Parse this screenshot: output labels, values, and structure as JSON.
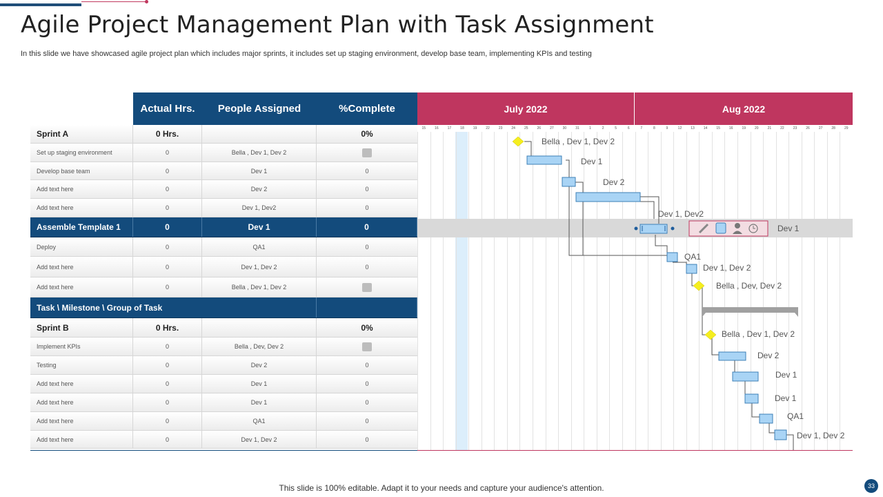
{
  "title": "Agile Project Management Plan with Task Assignment",
  "subtitle": "In this slide we have showcased agile project plan which includes major sprints, it includes set up staging environment, develop base team, implementing KPIs and testing",
  "table": {
    "headers": {
      "actual": "Actual Hrs.",
      "people": "People Assigned",
      "complete": "%Complete"
    },
    "rows": [
      {
        "name": "Sprint A",
        "hrs": "0 Hrs.",
        "people": "",
        "pct": "0%",
        "kind": "bold"
      },
      {
        "name": "Set up staging environment",
        "hrs": "0",
        "people": "Bella , Dev 1, Dev 2",
        "pct": "",
        "check": true
      },
      {
        "name": "Develop base team",
        "hrs": "0",
        "people": "Dev 1",
        "pct": "0"
      },
      {
        "name": "Add text here",
        "hrs": "0",
        "people": "Dev 2",
        "pct": "0"
      },
      {
        "name": "Add text here",
        "hrs": "0",
        "people": "Dev 1, Dev2",
        "pct": "0"
      },
      {
        "name": "Assemble Template 1",
        "hrs": "0",
        "people": "Dev 1",
        "pct": "0",
        "kind": "group"
      },
      {
        "name": "Deploy",
        "hrs": "0",
        "people": "QA1",
        "pct": "0"
      },
      {
        "name": "Add text here",
        "hrs": "0",
        "people": "Dev 1, Dev 2",
        "pct": "0"
      },
      {
        "name": "Add text here",
        "hrs": "0",
        "people": "Bella , Dev 1, Dev 2",
        "pct": "",
        "check": true
      },
      {
        "name": "Task \\ Milestone \\ Group of Task",
        "hrs": "",
        "people": "",
        "pct": "",
        "kind": "group-wide"
      },
      {
        "name": "Sprint B",
        "hrs": "0 Hrs.",
        "people": "",
        "pct": "0%",
        "kind": "bold"
      },
      {
        "name": "Implement KPIs",
        "hrs": "0",
        "people": "Bella , Dev, Dev 2",
        "pct": "",
        "check": true
      },
      {
        "name": "Testing",
        "hrs": "0",
        "people": "Dev 2",
        "pct": "0"
      },
      {
        "name": "Add text here",
        "hrs": "0",
        "people": "Dev 1",
        "pct": "0"
      },
      {
        "name": "Add text here",
        "hrs": "0",
        "people": "Dev 1",
        "pct": "0"
      },
      {
        "name": "Add text here",
        "hrs": "0",
        "people": "QA1",
        "pct": "0"
      },
      {
        "name": "Add text here",
        "hrs": "0",
        "people": "Dev 1, Dev 2",
        "pct": "0"
      }
    ]
  },
  "gantt": {
    "months": [
      "July 2022",
      "Aug 2022"
    ],
    "days": [
      "15",
      "16",
      "17",
      "18",
      "19",
      "22",
      "23",
      "24",
      "25",
      "26",
      "27",
      "30",
      "31",
      "1",
      "2",
      "5",
      "6",
      "7",
      "8",
      "9",
      "12",
      "13",
      "14",
      "15",
      "16",
      "19",
      "20",
      "21",
      "22",
      "23",
      "26",
      "27",
      "28",
      "29"
    ],
    "labels": [
      "Bella , Dev 1, Dev 2",
      "Dev 1",
      "Dev 2",
      "Dev 1, Dev2",
      "Dev 1",
      "QA1",
      "Dev 1, Dev 2",
      "Bella , Dev, Dev 2",
      "Bella , Dev 1, Dev 2",
      "Dev 2",
      "Dev 1",
      "Dev 1",
      "QA1",
      "Dev 1, Dev 2"
    ]
  },
  "colors": {
    "navy": "#134b7c",
    "magenta": "#bf365f",
    "bar": "#a9d4f5",
    "milestone": "#f5ee1f"
  },
  "footer": "This slide is 100% editable. Adapt it to your needs and capture your audience's attention.",
  "page_number": "33"
}
